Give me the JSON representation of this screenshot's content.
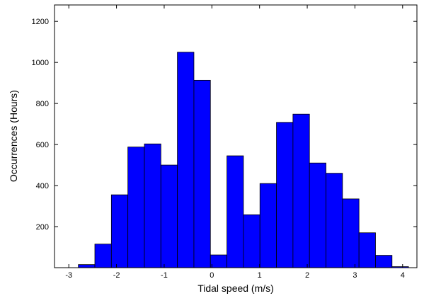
{
  "chart_data": {
    "type": "bar",
    "title": "",
    "xlabel": "Tidal speed (m/s)",
    "ylabel": "Occurrences (Hours)",
    "xlim": [
      -3.3,
      4.3
    ],
    "ylim": [
      0,
      1280
    ],
    "bin_width": 0.3462,
    "bin_start": -2.8,
    "values": [
      15,
      115,
      355,
      588,
      603,
      500,
      1050,
      913,
      62,
      545,
      258,
      410,
      708,
      748,
      510,
      460,
      335,
      170,
      60,
      5
    ],
    "x_ticks": [
      -3,
      -2,
      -1,
      0,
      1,
      2,
      3,
      4
    ],
    "x_tick_labels": [
      "-3",
      "-2",
      "-1",
      "0",
      "1",
      "2",
      "3",
      "4"
    ],
    "y_ticks": [
      200,
      400,
      600,
      800,
      1000,
      1200
    ],
    "y_tick_labels": [
      "200",
      "400",
      "600",
      "800",
      "1000",
      "1200"
    ],
    "grid": false,
    "colors": {
      "bar": "#0000ff",
      "bar_edge": "#000000",
      "axis": "#000000",
      "background": "#ffffff"
    }
  }
}
